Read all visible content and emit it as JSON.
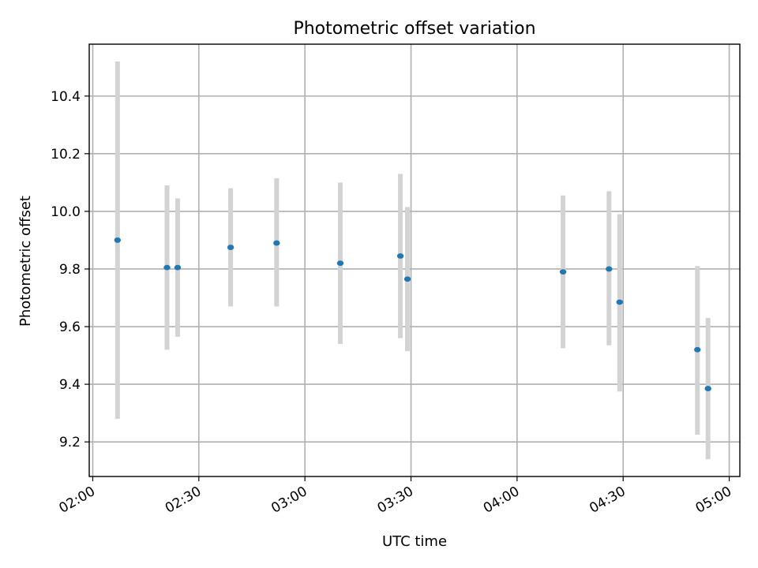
{
  "chart_data": {
    "type": "scatter",
    "title": "Photometric offset variation",
    "xlabel": "UTC time",
    "ylabel": "Photometric offset",
    "x_ticks": [
      "02:00",
      "02:30",
      "03:00",
      "03:30",
      "04:00",
      "04:30",
      "05:00"
    ],
    "y_ticks": [
      "9.2",
      "9.4",
      "9.6",
      "9.8",
      "10.0",
      "10.2",
      "10.4"
    ],
    "xlim": [
      "01:59",
      "05:03"
    ],
    "ylim": [
      9.08,
      10.58
    ],
    "grid": true,
    "colors": {
      "point": "#1f77b4",
      "errorbar": "#d3d3d3",
      "grid": "#b0b0b0"
    },
    "points": [
      {
        "x": "02:07",
        "y": 9.9,
        "err_low": 9.28,
        "err_high": 10.52
      },
      {
        "x": "02:21",
        "y": 9.805,
        "err_low": 9.52,
        "err_high": 10.09
      },
      {
        "x": "02:24",
        "y": 9.805,
        "err_low": 9.565,
        "err_high": 10.045
      },
      {
        "x": "02:39",
        "y": 9.875,
        "err_low": 9.67,
        "err_high": 10.08
      },
      {
        "x": "02:52",
        "y": 9.89,
        "err_low": 9.67,
        "err_high": 10.115
      },
      {
        "x": "03:10",
        "y": 9.82,
        "err_low": 9.54,
        "err_high": 10.1
      },
      {
        "x": "03:27",
        "y": 9.845,
        "err_low": 9.56,
        "err_high": 10.13
      },
      {
        "x": "03:29",
        "y": 9.765,
        "err_low": 9.515,
        "err_high": 10.015
      },
      {
        "x": "04:13",
        "y": 9.79,
        "err_low": 9.525,
        "err_high": 10.055
      },
      {
        "x": "04:26",
        "y": 9.8,
        "err_low": 9.535,
        "err_high": 10.07
      },
      {
        "x": "04:29",
        "y": 9.685,
        "err_low": 9.375,
        "err_high": 9.99
      },
      {
        "x": "04:51",
        "y": 9.52,
        "err_low": 9.225,
        "err_high": 9.81
      },
      {
        "x": "04:54",
        "y": 9.385,
        "err_low": 9.14,
        "err_high": 9.63
      }
    ]
  }
}
